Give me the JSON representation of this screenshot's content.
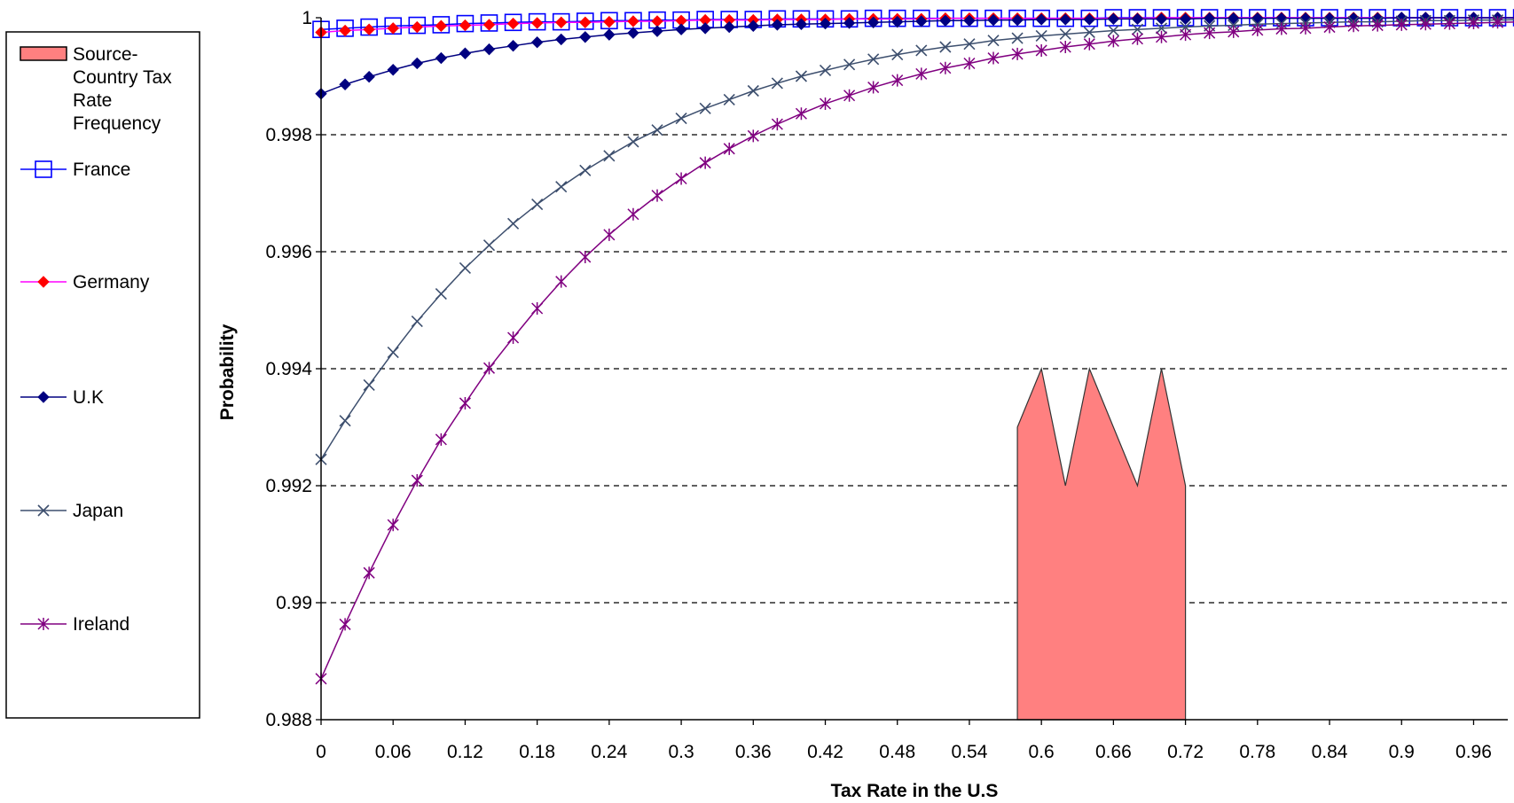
{
  "chart_data": {
    "type": "line",
    "title": "",
    "xlabel": "Tax Rate in the U.S",
    "ylabel": "Probability",
    "xlim": [
      0,
      1
    ],
    "ylim": [
      0.988,
      1
    ],
    "x_ticks": [
      "0",
      "0.06",
      "0.12",
      "0.18",
      "0.24",
      "0.3",
      "0.36",
      "0.42",
      "0.48",
      "0.54",
      "0.6",
      "0.66",
      "0.72",
      "0.78",
      "0.84",
      "0.9",
      "0.96"
    ],
    "y_ticks": [
      "0.988",
      "0.99",
      "0.992",
      "0.994",
      "0.996",
      "0.998",
      "1"
    ],
    "grid": "horizontal dashed",
    "legend_position": "left",
    "area_series": {
      "name": "Source-Country Tax Rate Frequency",
      "color": "#ff8080",
      "x": [
        0.58,
        0.6,
        0.62,
        0.64,
        0.66,
        0.68,
        0.7,
        0.72
      ],
      "y": [
        0.993,
        0.994,
        0.992,
        0.994,
        0.993,
        0.992,
        0.994,
        0.992
      ]
    },
    "series": [
      {
        "name": "France",
        "color": "#0000ff",
        "marker": "square",
        "x": [
          0,
          0.02,
          0.04,
          0.06,
          0.08,
          0.1,
          0.12,
          0.14,
          0.16,
          0.18,
          0.2,
          0.22,
          0.24,
          0.26,
          0.28,
          0.3,
          0.32,
          0.34,
          0.36,
          0.38,
          0.4,
          0.42,
          0.44,
          0.46,
          0.48,
          0.5,
          0.52,
          0.54,
          0.56,
          0.58,
          0.6,
          0.62,
          0.64,
          0.66,
          0.68,
          0.7,
          0.72,
          0.74,
          0.76,
          0.78,
          0.8,
          0.82,
          0.84,
          0.86,
          0.88,
          0.9,
          0.92,
          0.94,
          0.96,
          0.98,
          1.0
        ],
        "y": [
          0.9998,
          0.99982,
          0.99984,
          0.99986,
          0.99987,
          0.99988,
          0.9999,
          0.99991,
          0.99992,
          0.99993,
          0.99993,
          0.99994,
          0.99995,
          0.99995,
          0.99996,
          0.99996,
          0.99997,
          0.99997,
          0.99997,
          0.99998,
          0.99998,
          0.99998,
          0.99998,
          0.99999,
          0.99999,
          0.99999,
          0.99999,
          0.99999,
          0.99999,
          0.99999,
          0.99999,
          0.99999,
          0.99999,
          1.0,
          1.0,
          1.0,
          1.0,
          1.0,
          1.0,
          1.0,
          1.0,
          1.0,
          1.0,
          1.0,
          1.0,
          1.0,
          1.0,
          1.0,
          1.0,
          1.0,
          1.0
        ]
      },
      {
        "name": "Germany",
        "color": "#ff00ff",
        "marker_color": "#ff0000",
        "marker": "diamond",
        "x": [
          0,
          0.02,
          0.04,
          0.06,
          0.08,
          0.1,
          0.12,
          0.14,
          0.16,
          0.18,
          0.2,
          0.22,
          0.24,
          0.26,
          0.28,
          0.3,
          0.32,
          0.34,
          0.36,
          0.38,
          0.4,
          0.42,
          0.44,
          0.46,
          0.48,
          0.5,
          0.52,
          0.54,
          0.56,
          0.58,
          0.6,
          0.62,
          0.64,
          0.66,
          0.68,
          0.7,
          0.72,
          0.74,
          0.76,
          0.78,
          0.8,
          0.82,
          0.84,
          0.86,
          0.88,
          0.9,
          0.92,
          0.94,
          0.96,
          0.98,
          1.0
        ],
        "y": [
          0.99975,
          0.99978,
          0.9998,
          0.99982,
          0.99984,
          0.99986,
          0.99987,
          0.99988,
          0.9999,
          0.99991,
          0.99992,
          0.99992,
          0.99993,
          0.99994,
          0.99994,
          0.99995,
          0.99996,
          0.99996,
          0.99996,
          0.99997,
          0.99997,
          0.99997,
          0.99998,
          0.99998,
          0.99998,
          0.99998,
          0.99999,
          0.99999,
          0.99999,
          0.99999,
          0.99999,
          0.99999,
          0.99999,
          0.99999,
          0.99999,
          1.0,
          1.0,
          1.0,
          1.0,
          1.0,
          1.0,
          1.0,
          1.0,
          1.0,
          1.0,
          1.0,
          1.0,
          1.0,
          1.0,
          1.0,
          1.0
        ]
      },
      {
        "name": "U.K",
        "color": "#000080",
        "marker": "diamond",
        "x": [
          0,
          0.02,
          0.04,
          0.06,
          0.08,
          0.1,
          0.12,
          0.14,
          0.16,
          0.18,
          0.2,
          0.22,
          0.24,
          0.26,
          0.28,
          0.3,
          0.32,
          0.34,
          0.36,
          0.38,
          0.4,
          0.42,
          0.44,
          0.46,
          0.48,
          0.5,
          0.52,
          0.54,
          0.56,
          0.58,
          0.6,
          0.62,
          0.64,
          0.66,
          0.68,
          0.7,
          0.72,
          0.74,
          0.76,
          0.78,
          0.8,
          0.82,
          0.84,
          0.86,
          0.88,
          0.9,
          0.92,
          0.94,
          0.96,
          0.98,
          1.0
        ],
        "y": [
          0.9987,
          0.99886,
          0.99899,
          0.99911,
          0.99922,
          0.99931,
          0.99939,
          0.99946,
          0.99952,
          0.99958,
          0.99963,
          0.99967,
          0.99971,
          0.99974,
          0.99977,
          0.9998,
          0.99982,
          0.99984,
          0.99986,
          0.99988,
          0.99989,
          0.9999,
          0.99991,
          0.99992,
          0.99993,
          0.99994,
          0.99995,
          0.99995,
          0.99996,
          0.99996,
          0.99997,
          0.99997,
          0.99997,
          0.99998,
          0.99998,
          0.99998,
          0.99998,
          0.99999,
          0.99999,
          0.99999,
          0.99999,
          0.99999,
          0.99999,
          0.99999,
          0.99999,
          1.0,
          1.0,
          1.0,
          1.0,
          1.0,
          1.0
        ]
      },
      {
        "name": "Japan",
        "color": "#3d4f6e",
        "marker": "x",
        "x": [
          0,
          0.02,
          0.04,
          0.06,
          0.08,
          0.1,
          0.12,
          0.14,
          0.16,
          0.18,
          0.2,
          0.22,
          0.24,
          0.26,
          0.28,
          0.3,
          0.32,
          0.34,
          0.36,
          0.38,
          0.4,
          0.42,
          0.44,
          0.46,
          0.48,
          0.5,
          0.52,
          0.54,
          0.56,
          0.58,
          0.6,
          0.62,
          0.64,
          0.66,
          0.68,
          0.7,
          0.72,
          0.74,
          0.76,
          0.78,
          0.8,
          0.82,
          0.84,
          0.86,
          0.88,
          0.9,
          0.92,
          0.94,
          0.96,
          0.98,
          1.0
        ],
        "y": [
          0.99245,
          0.99311,
          0.99372,
          0.99428,
          0.99481,
          0.99528,
          0.99572,
          0.99611,
          0.99648,
          0.99681,
          0.99711,
          0.99739,
          0.99764,
          0.99788,
          0.99808,
          0.99828,
          0.99845,
          0.9986,
          0.99875,
          0.99888,
          0.999,
          0.9991,
          0.9992,
          0.99929,
          0.99937,
          0.99944,
          0.9995,
          0.99955,
          0.99961,
          0.99965,
          0.99969,
          0.99972,
          0.99975,
          0.99978,
          0.9998,
          0.99982,
          0.99984,
          0.99986,
          0.99987,
          0.99989,
          0.9999,
          0.99991,
          0.99992,
          0.99993,
          0.99993,
          0.99994,
          0.99995,
          0.99995,
          0.99996,
          0.99996,
          0.99997
        ]
      },
      {
        "name": "Ireland",
        "color": "#800080",
        "marker": "asterisk",
        "x": [
          0,
          0.02,
          0.04,
          0.06,
          0.08,
          0.1,
          0.12,
          0.14,
          0.16,
          0.18,
          0.2,
          0.22,
          0.24,
          0.26,
          0.28,
          0.3,
          0.32,
          0.34,
          0.36,
          0.38,
          0.4,
          0.42,
          0.44,
          0.46,
          0.48,
          0.5,
          0.52,
          0.54,
          0.56,
          0.58,
          0.6,
          0.62,
          0.64,
          0.66,
          0.68,
          0.7,
          0.72,
          0.74,
          0.76,
          0.78,
          0.8,
          0.82,
          0.84,
          0.86,
          0.88,
          0.9,
          0.92,
          0.94,
          0.96,
          0.98,
          1.0
        ],
        "y": [
          0.9887,
          0.98963,
          0.99051,
          0.99133,
          0.99209,
          0.99279,
          0.99341,
          0.99401,
          0.99453,
          0.99503,
          0.99549,
          0.99591,
          0.99629,
          0.99664,
          0.99696,
          0.99725,
          0.99752,
          0.99776,
          0.99798,
          0.99818,
          0.99836,
          0.99853,
          0.99867,
          0.99881,
          0.99893,
          0.99904,
          0.99914,
          0.99922,
          0.99931,
          0.99938,
          0.99944,
          0.9995,
          0.99955,
          0.9996,
          0.99964,
          0.99967,
          0.99971,
          0.99974,
          0.99976,
          0.99979,
          0.99981,
          0.99982,
          0.99984,
          0.99986,
          0.99987,
          0.99988,
          0.99989,
          0.9999,
          0.99991,
          0.99992,
          0.99993
        ]
      }
    ]
  }
}
